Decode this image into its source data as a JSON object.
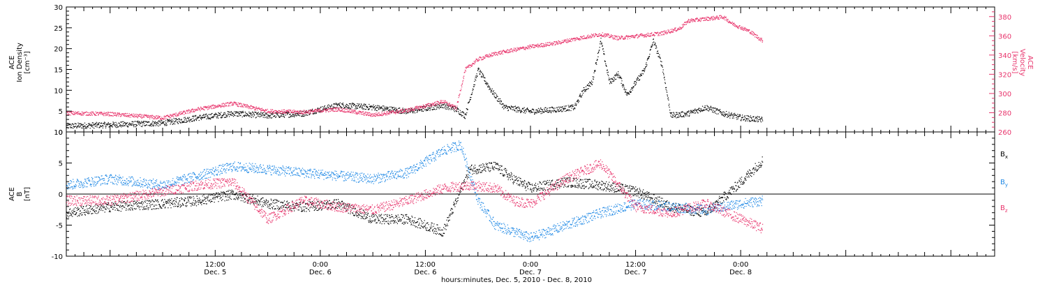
{
  "chart_data": [
    {
      "type": "scatter",
      "panel": "plasma",
      "x_range": [
        "2010-12-04T19:00",
        "2010-12-09T05:00"
      ],
      "left_axis": {
        "label_lines": [
          "ACE",
          "Ion Density",
          "[cm⁻³]"
        ],
        "ylim": [
          0,
          30
        ],
        "ticks": [
          0,
          5,
          10,
          15,
          20,
          25,
          30
        ],
        "color": "#000000"
      },
      "right_axis": {
        "label_lines": [
          "ACE",
          "Velocity",
          "[km/s]"
        ],
        "ylim": [
          260,
          390
        ],
        "ticks": [
          260,
          280,
          300,
          320,
          340,
          360,
          380
        ],
        "color": "#e8336b"
      },
      "series": [
        {
          "axis": "left",
          "color": "#000000",
          "x": [
            "2010-12-04T19:00",
            "2010-12-05T00:00",
            "2010-12-05T06:00",
            "2010-12-05T10:00",
            "2010-12-05T14:00",
            "2010-12-05T18:00",
            "2010-12-05T22:00",
            "2010-12-06T02:00",
            "2010-12-06T06:00",
            "2010-12-06T10:00",
            "2010-12-06T14:00",
            "2010-12-06T15:30",
            "2010-12-06T16:30",
            "2010-12-06T18:00",
            "2010-12-06T19:30",
            "2010-12-06T21:00",
            "2010-12-07T00:00",
            "2010-12-07T03:00",
            "2010-12-07T05:00",
            "2010-12-07T06:00",
            "2010-12-07T07:00",
            "2010-12-07T08:00",
            "2010-12-07T09:00",
            "2010-12-07T10:00",
            "2010-12-07T11:00",
            "2010-12-07T12:00",
            "2010-12-07T13:00",
            "2010-12-07T14:00",
            "2010-12-07T15:00",
            "2010-12-07T15:30",
            "2010-12-07T16:00",
            "2010-12-07T18:00",
            "2010-12-07T20:00",
            "2010-12-07T22:00",
            "2010-12-08T00:00",
            "2010-12-08T02:30"
          ],
          "y": [
            1.5,
            1.8,
            2.2,
            3.5,
            4.5,
            4.0,
            4.5,
            6.5,
            6.0,
            5.0,
            6.5,
            5.5,
            4.0,
            15.0,
            10.0,
            6.0,
            5.0,
            5.5,
            6.0,
            10.0,
            12.0,
            22.0,
            12.0,
            14.0,
            9.0,
            12.0,
            15.0,
            22.0,
            16.0,
            10.0,
            4.0,
            4.5,
            6.0,
            4.5,
            3.5,
            3.0
          ]
        },
        {
          "axis": "right",
          "color": "#e8336b",
          "x": [
            "2010-12-04T19:00",
            "2010-12-05T00:00",
            "2010-12-05T06:00",
            "2010-12-05T10:00",
            "2010-12-05T14:00",
            "2010-12-05T18:00",
            "2010-12-05T22:00",
            "2010-12-06T02:00",
            "2010-12-06T06:00",
            "2010-12-06T10:00",
            "2010-12-06T14:00",
            "2010-12-06T15:30",
            "2010-12-06T16:30",
            "2010-12-06T18:00",
            "2010-12-06T20:00",
            "2010-12-07T00:00",
            "2010-12-07T03:00",
            "2010-12-07T05:00",
            "2010-12-07T08:00",
            "2010-12-07T10:00",
            "2010-12-07T13:00",
            "2010-12-07T15:00",
            "2010-12-07T17:00",
            "2010-12-07T18:00",
            "2010-12-07T22:00",
            "2010-12-07T23:00",
            "2010-12-08T01:00",
            "2010-12-08T02:30"
          ],
          "y": [
            280,
            279,
            275,
            284,
            290,
            282,
            281,
            284,
            278,
            283,
            292,
            285,
            325,
            336,
            342,
            349,
            353,
            357,
            362,
            358,
            361,
            363,
            368,
            376,
            380,
            373,
            365,
            355
          ]
        }
      ]
    },
    {
      "type": "scatter",
      "panel": "magnetic-field",
      "x_range": [
        "2010-12-04T19:00",
        "2010-12-09T05:00"
      ],
      "y_axis": {
        "label_lines": [
          "ACE",
          "B",
          "[nT]"
        ],
        "ylim": [
          -10,
          10
        ],
        "ticks": [
          -10,
          -5,
          0,
          5,
          10
        ],
        "zero_line": true
      },
      "series": [
        {
          "name": "Bx",
          "color": "#000000",
          "x": [
            "2010-12-04T19:00",
            "2010-12-05T00:00",
            "2010-12-05T06:00",
            "2010-12-05T10:00",
            "2010-12-05T14:00",
            "2010-12-05T18:00",
            "2010-12-05T22:00",
            "2010-12-06T02:00",
            "2010-12-06T06:00",
            "2010-12-06T10:00",
            "2010-12-06T14:00",
            "2010-12-06T17:00",
            "2010-12-06T20:00",
            "2010-12-06T22:00",
            "2010-12-07T00:00",
            "2010-12-07T04:00",
            "2010-12-07T08:00",
            "2010-12-07T12:00",
            "2010-12-07T16:00",
            "2010-12-07T20:00",
            "2010-12-08T00:00",
            "2010-12-08T02:30"
          ],
          "y": [
            -3.0,
            -2.0,
            -1.5,
            -1.0,
            0.0,
            -1.5,
            -2.0,
            -1.5,
            -4.0,
            -4.0,
            -6.0,
            4.0,
            4.5,
            2.5,
            1.0,
            2.0,
            1.5,
            0.5,
            -2.0,
            -3.0,
            2.0,
            5.5
          ]
        },
        {
          "name": "By",
          "color": "#1e88e5",
          "x": [
            "2010-12-04T19:00",
            "2010-12-05T00:00",
            "2010-12-05T06:00",
            "2010-12-05T10:00",
            "2010-12-05T14:00",
            "2010-12-05T18:00",
            "2010-12-05T22:00",
            "2010-12-06T02:00",
            "2010-12-06T06:00",
            "2010-12-06T10:00",
            "2010-12-06T14:00",
            "2010-12-06T16:00",
            "2010-12-06T18:00",
            "2010-12-06T20:00",
            "2010-12-07T00:00",
            "2010-12-07T04:00",
            "2010-12-07T08:00",
            "2010-12-07T12:00",
            "2010-12-07T16:00",
            "2010-12-07T20:00",
            "2010-12-08T00:00",
            "2010-12-08T02:30"
          ],
          "y": [
            1.5,
            2.5,
            1.5,
            3.0,
            4.5,
            4.0,
            3.5,
            3.0,
            2.5,
            3.5,
            7.0,
            8.0,
            -1.0,
            -5.0,
            -7.0,
            -5.0,
            -3.0,
            -1.5,
            -2.0,
            -2.5,
            -1.5,
            -1.0
          ]
        },
        {
          "name": "Bz",
          "color": "#e8336b",
          "x": [
            "2010-12-04T19:00",
            "2010-12-05T00:00",
            "2010-12-05T06:00",
            "2010-12-05T10:00",
            "2010-12-05T14:00",
            "2010-12-05T18:00",
            "2010-12-05T22:00",
            "2010-12-06T02:00",
            "2010-12-06T06:00",
            "2010-12-06T10:00",
            "2010-12-06T14:00",
            "2010-12-06T17:00",
            "2010-12-06T20:00",
            "2010-12-06T22:00",
            "2010-12-07T00:00",
            "2010-12-07T04:00",
            "2010-12-07T08:00",
            "2010-12-07T12:00",
            "2010-12-07T16:00",
            "2010-12-07T20:00",
            "2010-12-08T00:00",
            "2010-12-08T02:30"
          ],
          "y": [
            -1.0,
            -1.0,
            0.5,
            1.5,
            2.0,
            -4.0,
            -1.0,
            -2.0,
            -2.5,
            -1.0,
            1.0,
            1.5,
            1.0,
            -1.0,
            -1.5,
            2.5,
            5.0,
            -2.0,
            -3.0,
            -1.5,
            -4.0,
            -5.5
          ]
        }
      ],
      "legend": [
        {
          "label": "B",
          "sub": "x",
          "color": "#000000"
        },
        {
          "label": "B",
          "sub": "y",
          "color": "#1e88e5"
        },
        {
          "label": "B",
          "sub": "z",
          "color": "#e8336b"
        }
      ]
    }
  ],
  "x_axis": {
    "ticks": [
      {
        "time": "2010-12-05T12:00",
        "line1": "12:00",
        "line2": "Dec. 5"
      },
      {
        "time": "2010-12-06T00:00",
        "line1": "0:00",
        "line2": "Dec. 6"
      },
      {
        "time": "2010-12-06T12:00",
        "line1": "12:00",
        "line2": "Dec. 6"
      },
      {
        "time": "2010-12-07T00:00",
        "line1": "0:00",
        "line2": "Dec. 7"
      },
      {
        "time": "2010-12-07T12:00",
        "line1": "12:00",
        "line2": "Dec. 7"
      },
      {
        "time": "2010-12-08T00:00",
        "line1": "0:00",
        "line2": "Dec. 8"
      }
    ],
    "title": "hours:minutes, Dec.  5, 2010 - Dec.  8, 2010"
  }
}
